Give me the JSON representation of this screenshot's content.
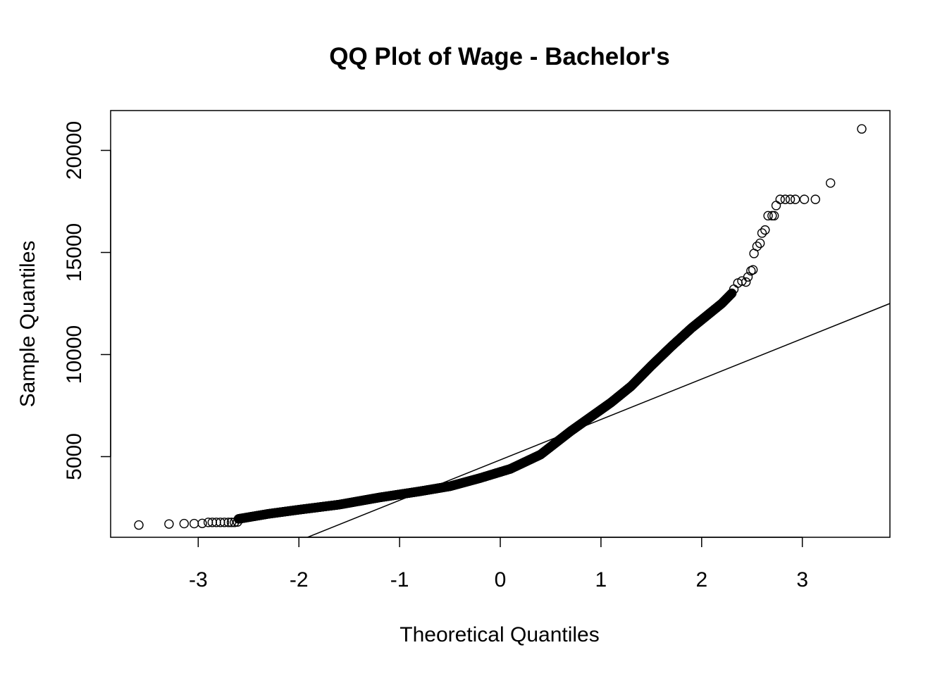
{
  "chart_data": {
    "type": "scatter",
    "title": "QQ Plot of Wage - Bachelor's",
    "xlabel": "Theoretical Quantiles",
    "ylabel": "Sample Quantiles",
    "xlim": [
      -3.87,
      3.87
    ],
    "ylim": [
      1050,
      21950
    ],
    "x_ticks": [
      -3,
      -2,
      -1,
      0,
      1,
      2,
      3
    ],
    "y_ticks": [
      5000,
      10000,
      15000,
      20000
    ],
    "reference_line": {
      "x1": -1.94,
      "y1": 1000,
      "x2": 3.87,
      "y2": 12500
    },
    "point_series": {
      "name": "",
      "sample_count": 1800
    },
    "curve_knots": [
      [
        -2.6,
        1950
      ],
      [
        -2.3,
        2200
      ],
      [
        -2.0,
        2400
      ],
      [
        -1.6,
        2650
      ],
      [
        -1.2,
        3000
      ],
      [
        -0.8,
        3300
      ],
      [
        -0.5,
        3550
      ],
      [
        -0.2,
        3950
      ],
      [
        0.1,
        4400
      ],
      [
        0.4,
        5100
      ],
      [
        0.7,
        6250
      ],
      [
        0.9,
        6950
      ],
      [
        1.1,
        7650
      ],
      [
        1.3,
        8450
      ],
      [
        1.5,
        9450
      ],
      [
        1.7,
        10400
      ],
      [
        1.9,
        11300
      ],
      [
        2.1,
        12100
      ],
      [
        2.2,
        12500
      ],
      [
        2.3,
        13000
      ]
    ],
    "lower_tail": [
      [
        -3.59,
        1650
      ],
      [
        -3.29,
        1700
      ],
      [
        -3.14,
        1720
      ],
      [
        -3.04,
        1720
      ],
      [
        -2.96,
        1730
      ],
      [
        -2.9,
        1780
      ],
      [
        -2.86,
        1780
      ],
      [
        -2.82,
        1780
      ],
      [
        -2.78,
        1780
      ],
      [
        -2.74,
        1780
      ],
      [
        -2.7,
        1780
      ],
      [
        -2.67,
        1780
      ],
      [
        -2.64,
        1780
      ],
      [
        -2.61,
        1800
      ]
    ],
    "upper_tail": [
      [
        2.32,
        13200
      ],
      [
        2.36,
        13500
      ],
      [
        2.4,
        13600
      ],
      [
        2.44,
        13550
      ],
      [
        2.46,
        13800
      ],
      [
        2.49,
        14100
      ],
      [
        2.51,
        14150
      ],
      [
        2.52,
        14950
      ],
      [
        2.55,
        15300
      ],
      [
        2.58,
        15450
      ],
      [
        2.6,
        15950
      ],
      [
        2.63,
        16100
      ],
      [
        2.66,
        16800
      ],
      [
        2.7,
        16800
      ],
      [
        2.72,
        16800
      ],
      [
        2.74,
        17300
      ],
      [
        2.78,
        17600
      ],
      [
        2.83,
        17600
      ],
      [
        2.88,
        17600
      ],
      [
        2.93,
        17600
      ],
      [
        3.02,
        17600
      ],
      [
        3.13,
        17600
      ],
      [
        3.28,
        18400
      ],
      [
        3.59,
        21050
      ]
    ]
  }
}
